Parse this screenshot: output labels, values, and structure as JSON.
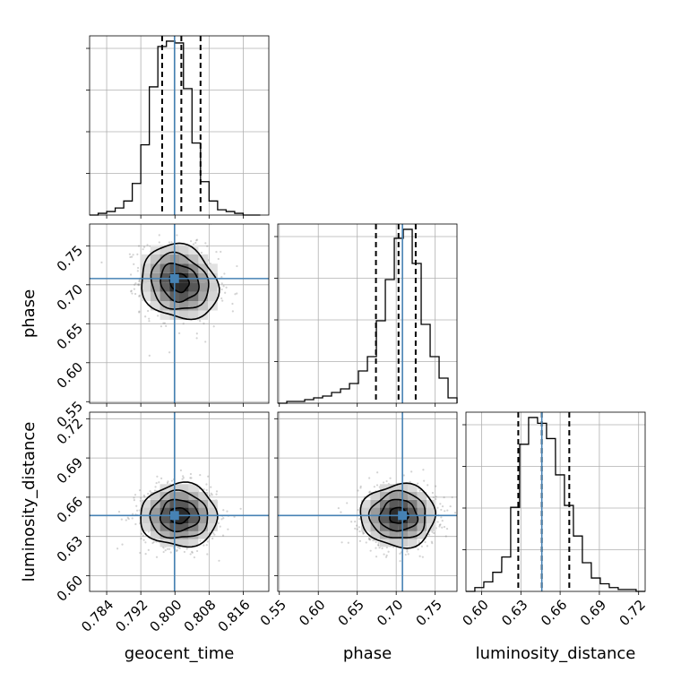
{
  "chart_data": {
    "type": "corner",
    "truth_color": "#4682b4",
    "parameters": [
      {
        "name": "geocent_time",
        "label": "geocent_time",
        "range": [
          0.78,
          0.822
        ],
        "ticks": [
          0.784,
          0.792,
          0.8,
          0.808,
          0.816
        ],
        "tick_labels": [
          "0.784",
          "0.792",
          "0.800",
          "0.808",
          "0.816"
        ],
        "truth": 0.7999,
        "mean": 0.801,
        "std": 0.0045,
        "quantiles": [
          0.797,
          0.8015,
          0.806
        ],
        "hist_x": [
          0.781,
          0.783,
          0.785,
          0.787,
          0.789,
          0.791,
          0.793,
          0.795,
          0.797,
          0.799,
          0.801,
          0.803,
          0.805,
          0.807,
          0.809,
          0.811,
          0.813,
          0.815,
          0.817,
          0.819
        ],
        "hist_y": [
          0.0,
          0.01,
          0.02,
          0.04,
          0.08,
          0.18,
          0.4,
          0.73,
          0.96,
          0.99,
          0.98,
          0.72,
          0.41,
          0.19,
          0.08,
          0.03,
          0.02,
          0.01,
          0.0,
          0.0
        ]
      },
      {
        "name": "phase",
        "label": "phase",
        "range": [
          0.548,
          0.778
        ],
        "ticks": [
          0.55,
          0.6,
          0.65,
          0.7,
          0.75
        ],
        "tick_labels": [
          "0.55",
          "0.60",
          "0.65",
          "0.70",
          "0.75"
        ],
        "truth": 0.708,
        "mean": 0.703,
        "std": 0.024,
        "quantiles": [
          0.674,
          0.703,
          0.725
        ],
        "hist_x": [
          0.5538,
          0.5653,
          0.5768,
          0.5883,
          0.5998,
          0.6113,
          0.6228,
          0.6343,
          0.6458,
          0.6573,
          0.6688,
          0.6803,
          0.6918,
          0.7033,
          0.7148,
          0.7263,
          0.7378,
          0.7493,
          0.7608,
          0.7723
        ],
        "hist_y": [
          0.0,
          0.01,
          0.01,
          0.02,
          0.03,
          0.04,
          0.06,
          0.08,
          0.11,
          0.18,
          0.26,
          0.46,
          0.69,
          0.92,
          0.97,
          0.78,
          0.44,
          0.26,
          0.14,
          0.03
        ]
      },
      {
        "name": "luminosity_distance",
        "label": "luminosity_distance",
        "range": [
          0.588,
          0.725
        ],
        "ticks": [
          0.6,
          0.63,
          0.66,
          0.69,
          0.72
        ],
        "tick_labels": [
          "0.60",
          "0.63",
          "0.66",
          "0.69",
          "0.72"
        ],
        "truth": 0.646,
        "mean": 0.646,
        "std": 0.012,
        "quantiles": [
          0.628,
          0.646,
          0.667
        ],
        "hist_x": [
          0.5914,
          0.5982,
          0.6051,
          0.6119,
          0.6188,
          0.6256,
          0.6325,
          0.6393,
          0.6462,
          0.653,
          0.6599,
          0.6667,
          0.6736,
          0.6804,
          0.6873,
          0.6941,
          0.701,
          0.7078,
          0.7147,
          0.7215
        ],
        "hist_y": [
          0.0,
          0.02,
          0.05,
          0.1,
          0.18,
          0.44,
          0.77,
          0.91,
          0.88,
          0.8,
          0.61,
          0.45,
          0.29,
          0.15,
          0.07,
          0.04,
          0.02,
          0.01,
          0.01,
          0.0
        ]
      }
    ],
    "pairs": [
      {
        "x": 0,
        "y": 1,
        "rho": -0.15
      },
      {
        "x": 0,
        "y": 2,
        "rho": 0.0
      },
      {
        "x": 1,
        "y": 2,
        "rho": 0.0
      }
    ],
    "contour_levels": [
      0.5,
      1.0,
      1.5,
      2.0
    ],
    "grid": true,
    "legend": "none"
  }
}
